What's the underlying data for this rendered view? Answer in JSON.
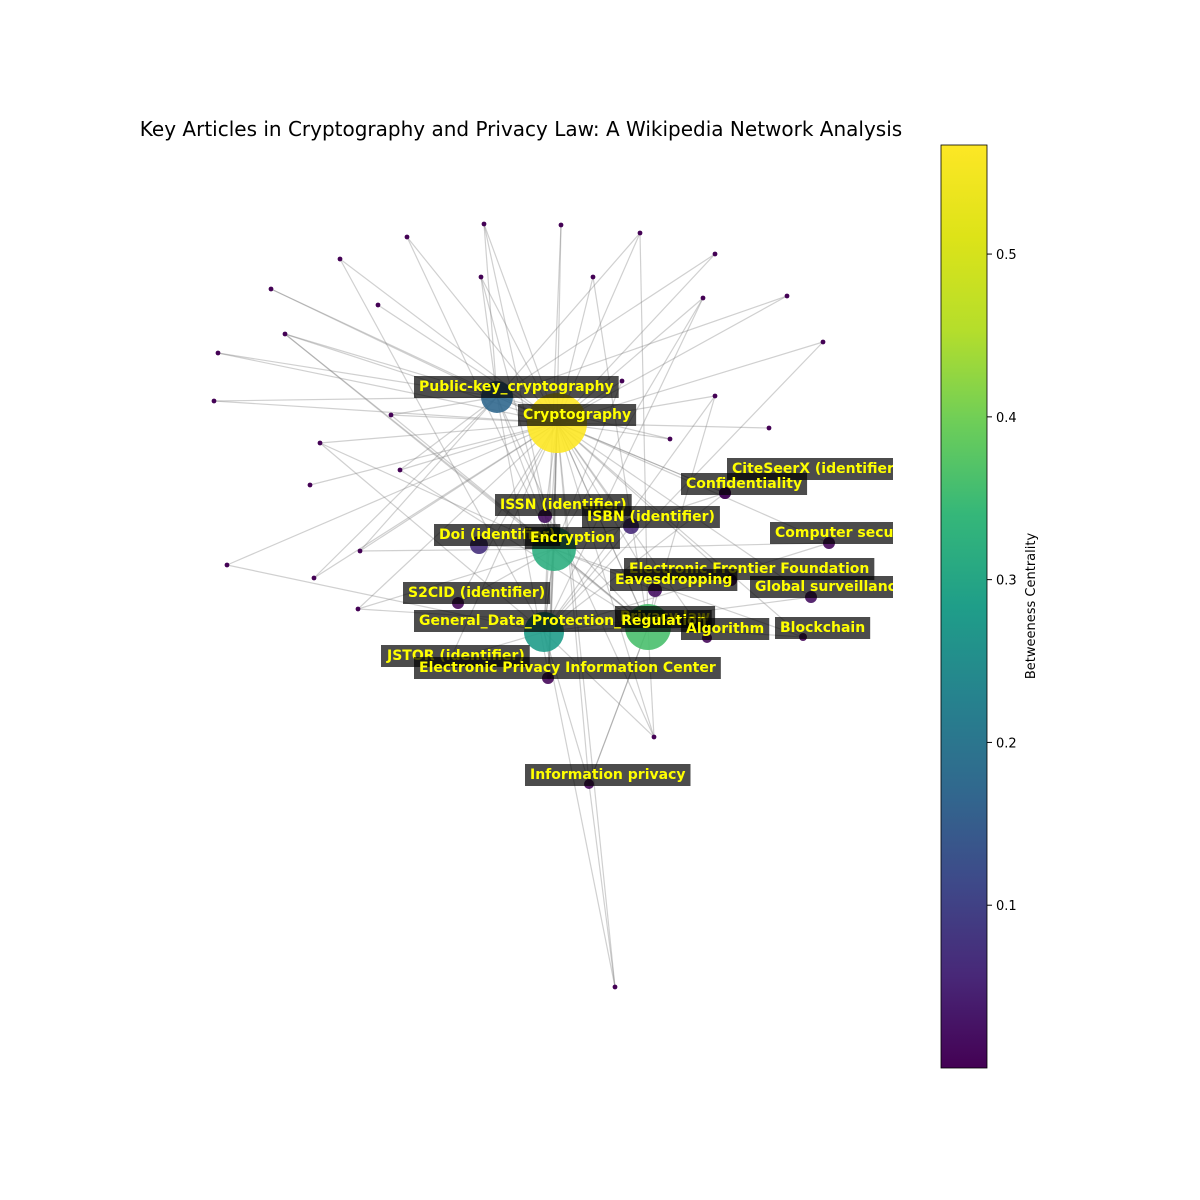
{
  "title": "Key Articles in Cryptography and Privacy Law: A Wikipedia Network Analysis",
  "colorbar": {
    "label": "Betweeness Centrality",
    "min": 0.0,
    "max": 0.567,
    "ticks": [
      0.1,
      0.2,
      0.3,
      0.4,
      0.5
    ],
    "tick_labels": [
      "0.1",
      "0.2",
      "0.3",
      "0.4",
      "0.5"
    ],
    "colormap": "viridis"
  },
  "labeled_nodes": [
    {
      "name": "Public-key_cryptography",
      "centrality": 0.17
    },
    {
      "name": "Cryptography",
      "centrality": 0.567
    },
    {
      "name": "CiteSeerX (identifier)",
      "centrality": 0.01
    },
    {
      "name": "Confidentiality",
      "centrality": 0.01
    },
    {
      "name": "ISSN (identifier)",
      "centrality": 0.02
    },
    {
      "name": "ISBN (identifier)",
      "centrality": 0.06
    },
    {
      "name": "Doi (identifier)",
      "centrality": 0.07
    },
    {
      "name": "Encryption",
      "centrality": 0.32
    },
    {
      "name": "Computer security",
      "centrality": 0.01
    },
    {
      "name": "Electronic Frontier Foundation",
      "centrality": 0.01
    },
    {
      "name": "Eavesdropping",
      "centrality": 0.02
    },
    {
      "name": "Global surveillance",
      "centrality": 0.02
    },
    {
      "name": "S2CID (identifier)",
      "centrality": 0.01
    },
    {
      "name": "Privacy law",
      "centrality": 0.36
    },
    {
      "name": "General_Data_Protection_Regulation",
      "centrality": 0.28
    },
    {
      "name": "Algorithm",
      "centrality": 0.01
    },
    {
      "name": "Blockchain",
      "centrality": 0.01
    },
    {
      "name": "JSTOR (identifier)",
      "centrality": 0.01
    },
    {
      "name": "Electronic Privacy Information Center",
      "centrality": 0.01
    },
    {
      "name": "Information privacy",
      "centrality": 0.01
    }
  ]
}
